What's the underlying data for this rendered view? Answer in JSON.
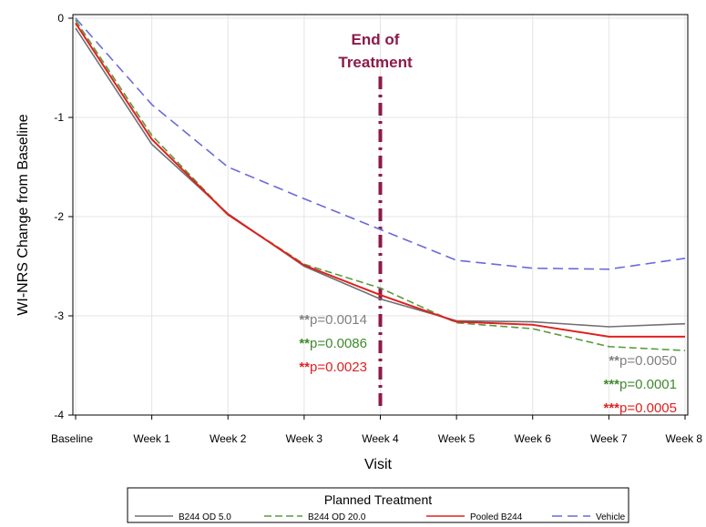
{
  "chart_data": {
    "type": "line",
    "xlabel": "Visit",
    "ylabel": "WI-NRS Change from Baseline",
    "categories": [
      "Baseline",
      "Week 1",
      "Week 2",
      "Week 3",
      "Week 4",
      "Week 5",
      "Week 6",
      "Week 7",
      "Week 8"
    ],
    "ylim": [
      -4,
      0
    ],
    "yticks": [
      "0",
      "-1",
      "-2",
      "-3",
      "-4"
    ],
    "grid": true,
    "series": [
      {
        "name": "B244 OD 5.0",
        "color": "#707070",
        "dash": "solid",
        "values": [
          -0.1,
          -1.27,
          -1.97,
          -2.5,
          -2.83,
          -3.05,
          -3.06,
          -3.11,
          -3.08
        ]
      },
      {
        "name": "B244 OD 20.0",
        "color": "#5a9a3c",
        "dash": "dashed",
        "values": [
          -0.02,
          -1.18,
          -1.98,
          -2.48,
          -2.72,
          -3.07,
          -3.13,
          -3.31,
          -3.35
        ]
      },
      {
        "name": "Pooled B244",
        "color": "#e02020",
        "dash": "solid",
        "values": [
          -0.05,
          -1.22,
          -1.98,
          -2.49,
          -2.79,
          -3.06,
          -3.09,
          -3.21,
          -3.21
        ]
      },
      {
        "name": "Vehicle",
        "color": "#6a6ad8",
        "dash": "longdash",
        "values": [
          0.0,
          -0.87,
          -1.5,
          -1.82,
          -2.13,
          -2.44,
          -2.52,
          -2.53,
          -2.42
        ]
      }
    ],
    "reference_line": {
      "category": "Week 4",
      "label_line1": "End of",
      "label_line2": "Treatment",
      "color": "#8b1a4a"
    },
    "annotations": {
      "week4": [
        {
          "stars": "**",
          "text": "p=0.0014",
          "color": "#808080"
        },
        {
          "stars": "**",
          "text": "p=0.0086",
          "color": "#3f8a2e"
        },
        {
          "stars": "**",
          "text": "p=0.0023",
          "color": "#e02020"
        }
      ],
      "week8": [
        {
          "stars": "**",
          "text": "p=0.0050",
          "color": "#808080"
        },
        {
          "stars": "***",
          "text": "p=0.0001",
          "color": "#3f8a2e"
        },
        {
          "stars": "***",
          "text": "p=0.0005",
          "color": "#e02020"
        }
      ]
    },
    "legend": {
      "title": "Planned Treatment",
      "position": "bottom"
    }
  }
}
